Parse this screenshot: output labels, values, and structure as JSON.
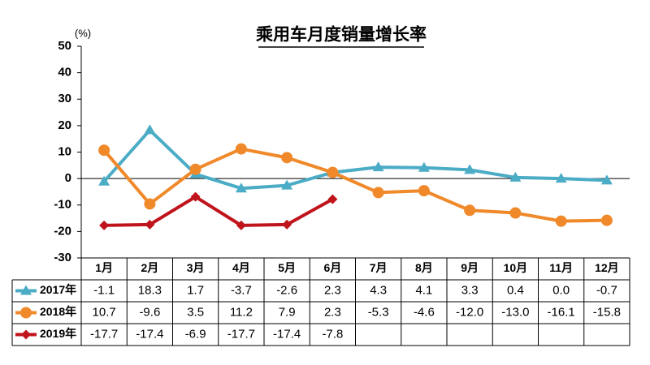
{
  "chart_data": {
    "type": "line",
    "title": "乘用车月度销量增长率",
    "y_label": "(%)",
    "categories": [
      "1月",
      "2月",
      "3月",
      "4月",
      "5月",
      "6月",
      "7月",
      "8月",
      "9月",
      "10月",
      "11月",
      "12月"
    ],
    "series": [
      {
        "name": "2017年",
        "color": "#4bacc6",
        "marker": "triangle",
        "values": [
          -1.1,
          18.3,
          1.7,
          -3.7,
          -2.6,
          2.3,
          4.3,
          4.1,
          3.3,
          0.4,
          0.0,
          -0.7
        ],
        "value_labels": [
          "-1.1",
          "18.3",
          "1.7",
          "-3.7",
          "-2.6",
          "2.3",
          "4.3",
          "4.1",
          "3.3",
          "0.4",
          "0.0",
          "-0.7"
        ]
      },
      {
        "name": "2018年",
        "color": "#f0892a",
        "marker": "circle",
        "values": [
          10.7,
          -9.6,
          3.5,
          11.2,
          7.9,
          2.3,
          -5.3,
          -4.6,
          -12.0,
          -13.0,
          -16.1,
          -15.8
        ],
        "value_labels": [
          "10.7",
          "-9.6",
          "3.5",
          "11.2",
          "7.9",
          "2.3",
          "-5.3",
          "-4.6",
          "-12.0",
          "-13.0",
          "-16.1",
          "-15.8"
        ]
      },
      {
        "name": "2019年",
        "color": "#c0141c",
        "marker": "diamond",
        "values": [
          -17.7,
          -17.4,
          -6.9,
          -17.7,
          -17.4,
          -7.8,
          null,
          null,
          null,
          null,
          null,
          null
        ]
      }
    ],
    "ylim": [
      -30,
      50
    ],
    "yticks": [
      -30,
      -20,
      -10,
      0,
      10,
      20,
      30,
      40,
      50
    ],
    "grid": false
  }
}
